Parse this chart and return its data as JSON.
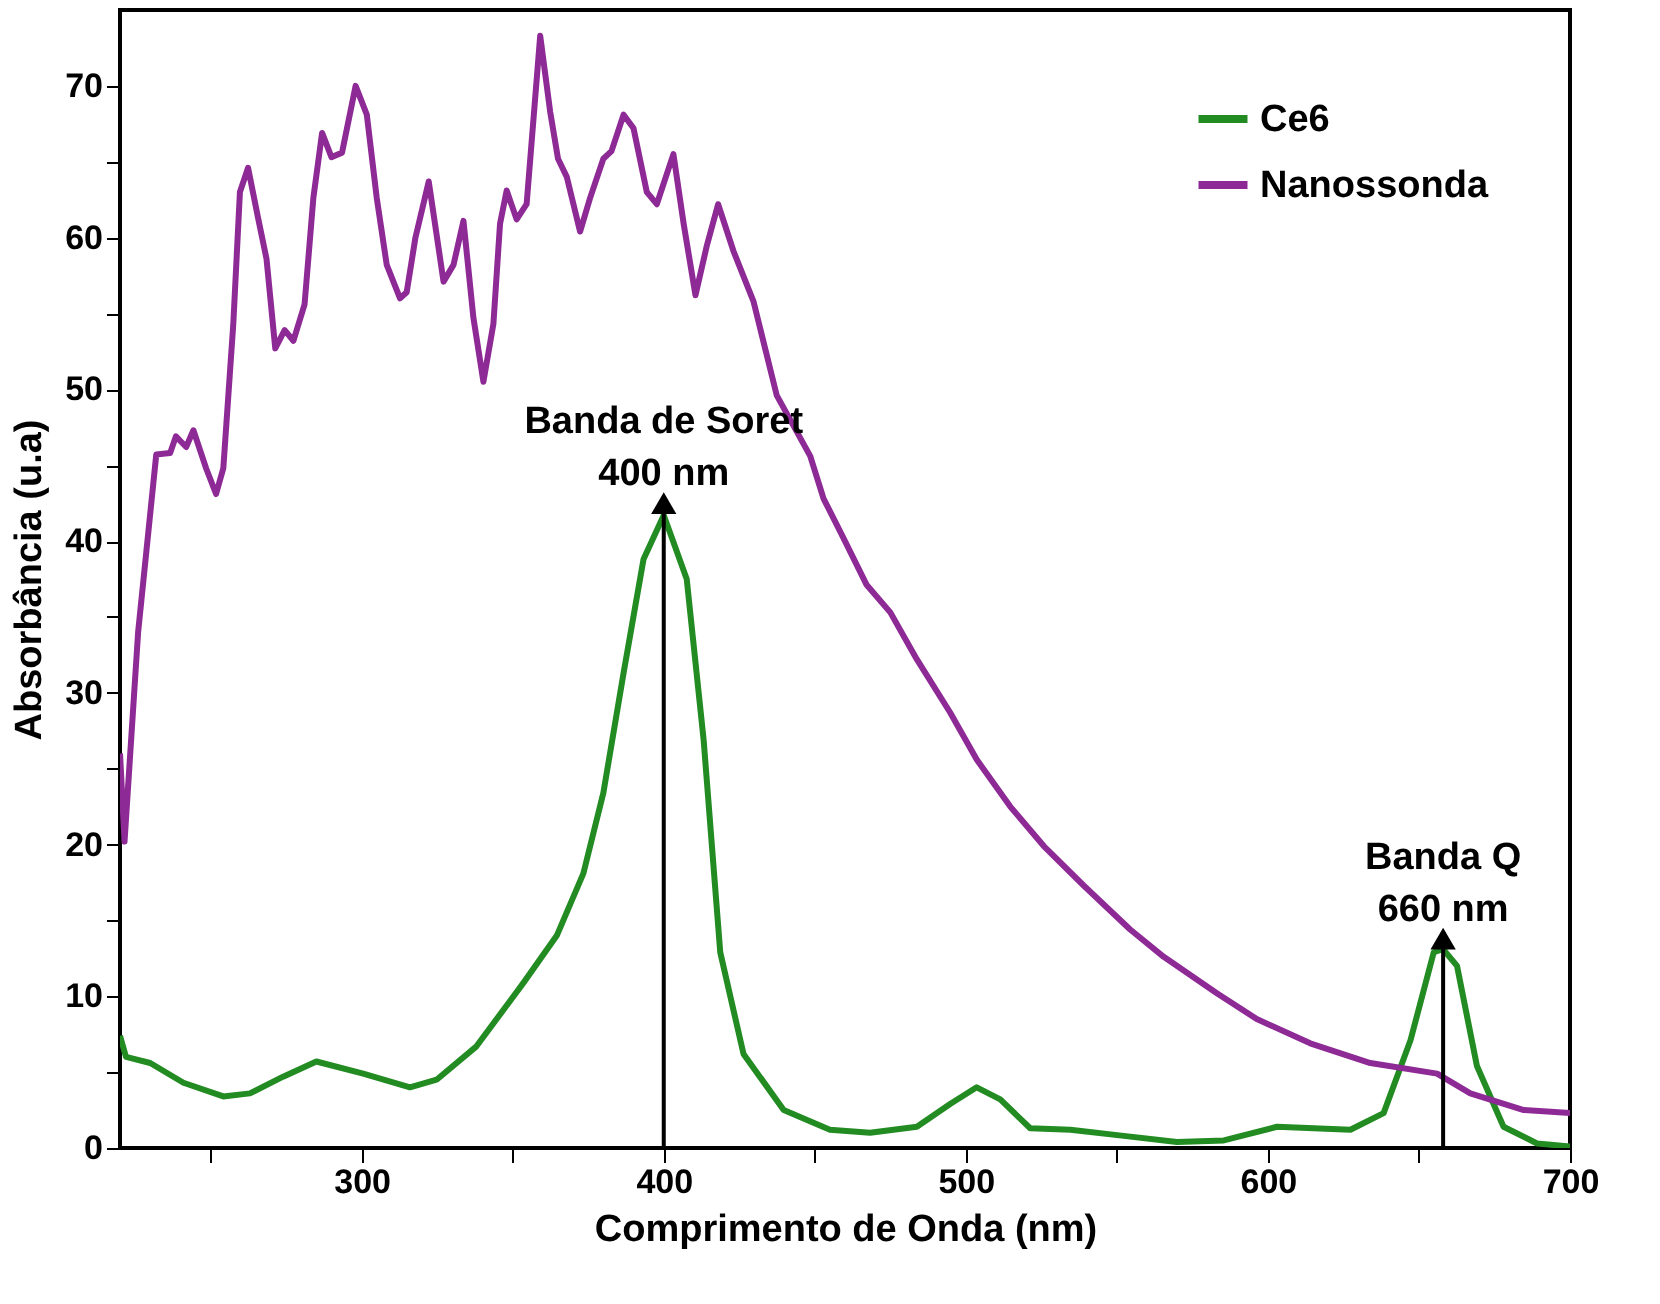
{
  "chart_data": {
    "type": "line",
    "xlabel": "Comprimento de Onda (nm)",
    "ylabel": "Absorbância (u.a)",
    "xlim": [
      220,
      700
    ],
    "ylim": [
      0,
      75
    ],
    "xticks": [
      {
        "value": 250,
        "label": null
      },
      300,
      {
        "value": 350,
        "label": null
      },
      400,
      {
        "value": 450,
        "label": null
      },
      500,
      {
        "value": 550,
        "label": null
      },
      600,
      {
        "value": 650,
        "label": null
      },
      700
    ],
    "yticks": [
      0,
      {
        "value": 5,
        "label": null
      },
      10,
      {
        "value": 15,
        "label": null
      },
      20,
      {
        "value": 25,
        "label": null
      },
      30,
      {
        "value": 35,
        "label": null
      },
      40,
      {
        "value": 45,
        "label": null
      },
      50,
      {
        "value": 55,
        "label": null
      },
      60,
      {
        "value": 65,
        "label": null
      },
      70
    ],
    "grid": false,
    "legend": "top right",
    "marker": "none",
    "line_style": "solid",
    "annotations": [
      {
        "text": "Banda de Soret\n400 nm",
        "x": 400,
        "y": 42.5
      },
      {
        "text": "Banda Q\n660 nm",
        "x": 658,
        "y": 13.8
      }
    ],
    "series": [
      {
        "name": "Ce6",
        "color": "#228b22",
        "x": [
          220,
          222,
          230,
          241,
          254.2,
          263,
          274,
          285,
          300.5,
          316,
          324.8,
          338,
          353.6,
          364.6,
          373.4,
          380,
          386.7,
          393.3,
          400,
          407.6,
          413.2,
          418.7,
          426.4,
          439.7,
          455,
          468.3,
          483.8,
          494.8,
          503.6,
          511.4,
          521.3,
          534.6,
          552.3,
          569.9,
          585.4,
          603,
          627.3,
          638.3,
          647.2,
          654.9,
          658,
          662.6,
          669.2,
          678,
          689.1,
          700
        ],
        "values": [
          7.4,
          6.0,
          5.6,
          4.3,
          3.4,
          3.6,
          4.7,
          5.7,
          4.9,
          4.0,
          4.5,
          6.7,
          10.9,
          14.0,
          18.1,
          23.4,
          31.3,
          38.8,
          41.7,
          37.5,
          26.9,
          12.9,
          6.2,
          2.5,
          1.2,
          1.0,
          1.4,
          2.9,
          4.0,
          3.2,
          1.3,
          1.2,
          0.8,
          0.4,
          0.5,
          1.4,
          1.2,
          2.3,
          7.1,
          12.9,
          13.1,
          12.0,
          5.4,
          1.4,
          0.3,
          0.1
        ]
      },
      {
        "name": "Nanossonda",
        "color": "#8e2a95",
        "x": [
          220,
          221.5,
          226,
          232,
          236.6,
          238.5,
          241.9,
          244.3,
          248.5,
          251.8,
          254.2,
          257.5,
          259.7,
          262.4,
          265.7,
          268.5,
          271.4,
          274.5,
          277.4,
          281.1,
          284,
          286.9,
          290,
          293.5,
          298,
          301.7,
          305,
          308.3,
          312.7,
          314.9,
          317.8,
          322.2,
          327.1,
          330.4,
          333.7,
          337,
          340.3,
          343.6,
          345.8,
          348,
          351.3,
          354.6,
          359.1,
          362.4,
          365,
          367.9,
          372.3,
          375.6,
          380,
          382.7,
          386.7,
          390,
          394.4,
          397.7,
          403.2,
          406.6,
          410.5,
          414.3,
          418,
          423.1,
          429.7,
          437.4,
          448.5,
          452.9,
          459.5,
          467.2,
          475,
          483.8,
          494.8,
          503.6,
          514.7,
          525.8,
          539,
          554.4,
          565.5,
          583.1,
          596.3,
          614,
          633.9,
          656,
          667,
          684.7,
          700
        ],
        "values": [
          26,
          20.2,
          34,
          45.7,
          45.8,
          46.9,
          46.2,
          47.3,
          44.8,
          43.1,
          44.8,
          54.3,
          63.0,
          64.6,
          61.3,
          58.6,
          52.7,
          53.9,
          53.2,
          55.6,
          62.6,
          66.9,
          65.3,
          65.6,
          70.0,
          68.1,
          62.6,
          58.2,
          56.0,
          56.4,
          60.0,
          63.7,
          57.1,
          58.2,
          61.1,
          54.7,
          50.5,
          54.3,
          60.9,
          63.1,
          61.2,
          62.2,
          73.3,
          68.3,
          65.2,
          64.0,
          60.4,
          62.6,
          65.2,
          65.7,
          68.1,
          67.2,
          63.0,
          62.2,
          65.5,
          60.9,
          56.2,
          59.5,
          62.2,
          59.1,
          55.8,
          49.6,
          45.6,
          42.8,
          40.2,
          37.1,
          35.3,
          32.2,
          28.7,
          25.6,
          22.5,
          19.9,
          17.3,
          14.4,
          12.6,
          10.2,
          8.5,
          6.9,
          5.6,
          4.9,
          3.6,
          2.5,
          2.3
        ]
      }
    ]
  }
}
